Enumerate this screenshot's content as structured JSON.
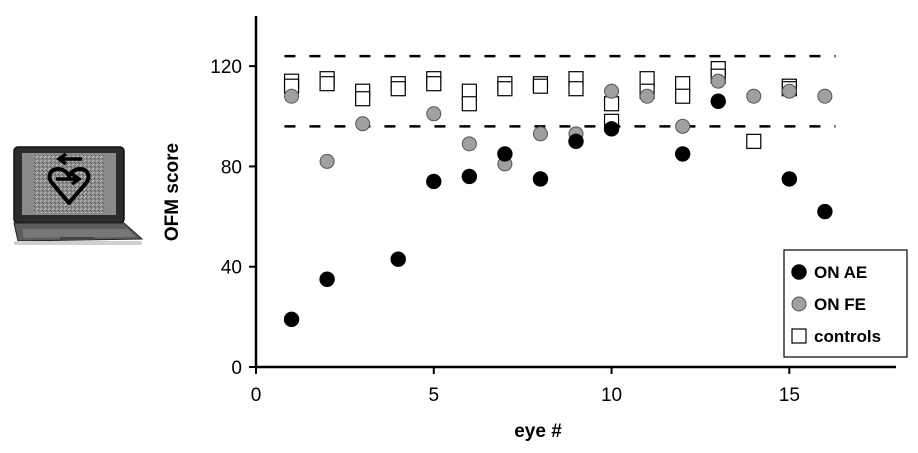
{
  "chart_data": {
    "type": "scatter",
    "xlabel": "eye #",
    "ylabel": "OFM score",
    "xlim": [
      0,
      18
    ],
    "ylim": [
      0,
      140
    ],
    "xticks": [
      0,
      5,
      10,
      15
    ],
    "yticks": [
      0,
      40,
      80,
      120
    ],
    "grid": false,
    "legend_position": "bottom-right",
    "reference_lines": [
      124,
      96
    ],
    "series": [
      {
        "name": "ON AE",
        "marker": "filled-circle",
        "color": "#000000",
        "points": [
          [
            1,
            19
          ],
          [
            2,
            35
          ],
          [
            4,
            43
          ],
          [
            5,
            74
          ],
          [
            6,
            76
          ],
          [
            7,
            85
          ],
          [
            8,
            75
          ],
          [
            9,
            90
          ],
          [
            10,
            95
          ],
          [
            12,
            85
          ],
          [
            13,
            106
          ],
          [
            15,
            75
          ],
          [
            16,
            62
          ]
        ]
      },
      {
        "name": "ON FE",
        "marker": "gray-circle",
        "color": "#a0a0a0",
        "points": [
          [
            1,
            108
          ],
          [
            2,
            82
          ],
          [
            3,
            97
          ],
          [
            5,
            101
          ],
          [
            6,
            89
          ],
          [
            7,
            81
          ],
          [
            8,
            93
          ],
          [
            9,
            93
          ],
          [
            10,
            110
          ],
          [
            11,
            108
          ],
          [
            12,
            96
          ],
          [
            13,
            114
          ],
          [
            14,
            108
          ],
          [
            15,
            110
          ],
          [
            16,
            108
          ]
        ]
      },
      {
        "name": "controls",
        "marker": "open-square",
        "color": "#ffffff",
        "points": [
          [
            1,
            114
          ],
          [
            1,
            112
          ],
          [
            2,
            115
          ],
          [
            2,
            113
          ],
          [
            3,
            110
          ],
          [
            3,
            107
          ],
          [
            4,
            113
          ],
          [
            4,
            111
          ],
          [
            5,
            115
          ],
          [
            5,
            113
          ],
          [
            6,
            110
          ],
          [
            6,
            105
          ],
          [
            7,
            113
          ],
          [
            7,
            111
          ],
          [
            8,
            113
          ],
          [
            8,
            112
          ],
          [
            9,
            115
          ],
          [
            9,
            111
          ],
          [
            10,
            105
          ],
          [
            10,
            98
          ],
          [
            11,
            115
          ],
          [
            11,
            110
          ],
          [
            12,
            113
          ],
          [
            12,
            108
          ],
          [
            13,
            119
          ],
          [
            13,
            116
          ],
          [
            14,
            90
          ],
          [
            15,
            112
          ],
          [
            15,
            111
          ]
        ]
      }
    ]
  }
}
